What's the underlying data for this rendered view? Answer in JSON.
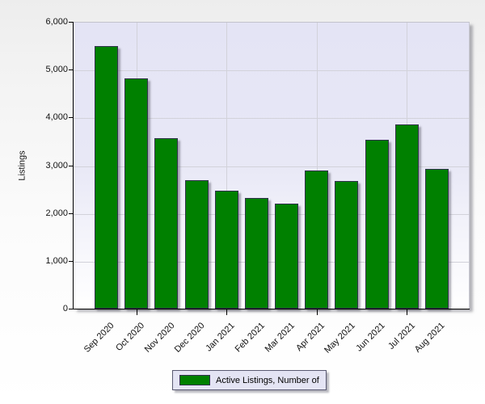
{
  "chart_data": {
    "type": "bar",
    "title": "",
    "categories": [
      "Sep 2020",
      "Oct 2020",
      "Nov 2020",
      "Dec 2020",
      "Jan 2021",
      "Feb 2021",
      "Mar 2021",
      "Apr 2021",
      "May 2021",
      "Jun 2021",
      "Jul 2021",
      "Aug 2021"
    ],
    "series": [
      {
        "name": "Active Listings, Number of",
        "color": "#008000",
        "values": [
          5500,
          4820,
          3560,
          2690,
          2470,
          2310,
          2200,
          2890,
          2670,
          3530,
          3860,
          2930
        ]
      }
    ],
    "xlabel": "",
    "ylabel": "Listings",
    "ylim": [
      0,
      6000
    ],
    "ytick_interval": 1000,
    "ytick_labels": [
      "0",
      "1,000",
      "2,000",
      "3,000",
      "4,000",
      "5,000",
      "6,000"
    ],
    "x_gridline_category_indices": [
      1,
      4,
      7,
      10
    ],
    "grid": true,
    "legend_position": "bottom",
    "colors": {
      "bar_fill": "#008000",
      "bar_border": "#32324e",
      "plot_bg_top": "#e4e4f5",
      "plot_bg_bottom": "#ffffff",
      "gridline": "#d2d2da",
      "legend_bg": "#e4e4f4"
    }
  }
}
